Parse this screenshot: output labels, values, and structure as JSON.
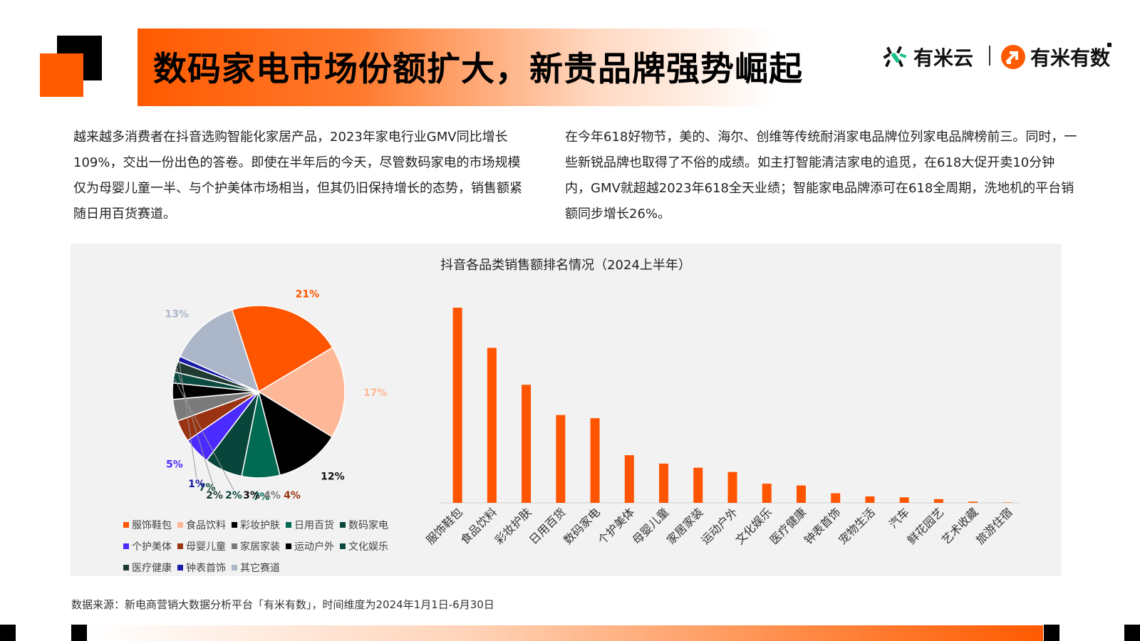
{
  "header": {
    "title": "数码家电市场份额扩大，新贵品牌强势崛起",
    "brand_primary": "有米云",
    "brand_secondary": "有米有数"
  },
  "paragraphs": {
    "left": "越来越多消费者在抖音选购智能化家居产品，2023年家电行业GMV同比增长109%，交出一份出色的答卷。即使在半年后的今天，尽管数码家电的市场规模仅为母婴儿童一半、与个护美体市场相当，但其仍旧保持增长的态势，销售额紧随日用百货赛道。",
    "right": "在今年618好物节，美的、海尔、创维等传统耐消家电品牌位列家电品牌榜前三。同时，一些新锐品牌也取得了不俗的成绩。如主打智能清洁家电的追觅，在618大促开卖10分钟内，GMV就超越2023年618全天业绩；智能家电品牌添可在618全周期，洗地机的平台销额同步增长26%。"
  },
  "chart_title": "抖音各品类销售额排名情况（2024上半年）",
  "chart_data": [
    {
      "type": "pie",
      "slices": [
        {
          "label": "服饰鞋包",
          "value": 21,
          "display": "21%",
          "color": "#ff5500"
        },
        {
          "label": "食品饮料",
          "value": 17,
          "display": "17%",
          "color": "#ffb897"
        },
        {
          "label": "彩妆护肤",
          "value": 12,
          "display": "12%",
          "color": "#000000"
        },
        {
          "label": "日用百货",
          "value": 7,
          "display": "7%",
          "color": "#006b52"
        },
        {
          "label": "数码家电",
          "value": 7,
          "display": "7%",
          "color": "#08453a"
        },
        {
          "label": "个护美体",
          "value": 5,
          "display": "5%",
          "color": "#4b2bff"
        },
        {
          "label": "母婴儿童",
          "value": 4,
          "display": "4%",
          "color": "#9a3312"
        },
        {
          "label": "家居家装",
          "value": 4,
          "display": "4%",
          "color": "#7a7a7a"
        },
        {
          "label": "运动户外",
          "value": 3,
          "display": "3%",
          "color": "#000000"
        },
        {
          "label": "文化娱乐",
          "value": 2,
          "display": "2%",
          "color": "#0b4a40"
        },
        {
          "label": "医疗健康",
          "value": 2,
          "display": "2%",
          "color": "#1f3a30"
        },
        {
          "label": "钟表首饰",
          "value": 1,
          "display": "1%",
          "color": "#1a1aaa"
        },
        {
          "label": "其它赛道",
          "value": 13,
          "display": "13%",
          "color": "#acb6c9"
        }
      ],
      "legend_position": "bottom"
    },
    {
      "type": "bar",
      "categories": [
        "服饰鞋包",
        "食品饮料",
        "彩妆护肤",
        "日用百货",
        "数码家电",
        "个护美体",
        "母婴儿童",
        "家居家装",
        "运动户外",
        "文化娱乐",
        "医疗健康",
        "钟表首饰",
        "宠物生活",
        "汽车",
        "鲜花园艺",
        "艺术收藏",
        "旅游住宿"
      ],
      "values": [
        100,
        79.4,
        60.5,
        45.0,
        43.4,
        24.4,
        20.1,
        18.0,
        15.8,
        9.8,
        8.9,
        4.9,
        3.3,
        2.8,
        1.9,
        0.6,
        0.2
      ],
      "color": "#ff5500",
      "axis_labels_shown": false,
      "grid": false
    }
  ],
  "source": "数据来源：新电商营销大数据分析平台「有米有数」，时间维度为2024年1月1日-6月30日"
}
